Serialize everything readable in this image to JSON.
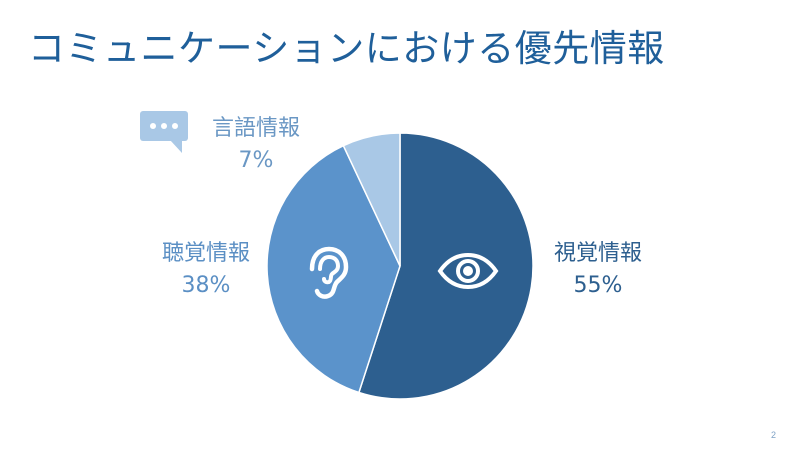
{
  "slide": {
    "title": "コミュニケーションにおける優先情報",
    "page_number": "2"
  },
  "chart_data": {
    "type": "pie",
    "title": "コミュニケーションにおける優先情報",
    "slices": [
      {
        "label": "視覚情報",
        "value": 55,
        "value_label": "55%",
        "color": "#2d5f8f",
        "icon": "eye-icon"
      },
      {
        "label": "聴覚情報",
        "value": 38,
        "value_label": "38%",
        "color": "#5b93cb",
        "icon": "ear-icon"
      },
      {
        "label": "言語情報",
        "value": 7,
        "value_label": "7%",
        "color": "#a9c8e6",
        "icon": "speech-bubble-icon"
      }
    ],
    "start_angle": "12 o'clock",
    "direction": "clockwise",
    "legend": "none"
  }
}
